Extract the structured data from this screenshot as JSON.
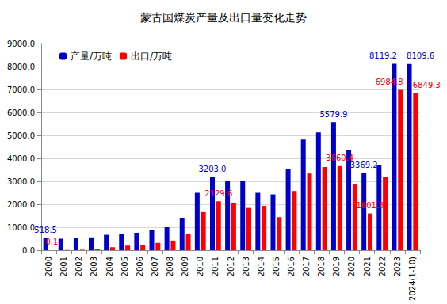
{
  "chart_data": {
    "type": "bar",
    "title": "蒙古国煤炭产量及出口量变化走势",
    "categories": [
      "2000",
      "2001",
      "2002",
      "2003",
      "2004",
      "2005",
      "2006",
      "2007",
      "2008",
      "2009",
      "2010",
      "2011",
      "2012",
      "2013",
      "2014",
      "2015",
      "2016",
      "2017",
      "2018",
      "2019",
      "2020",
      "2021",
      "2022",
      "2023",
      "2024(1-10)"
    ],
    "series": [
      {
        "name": "产量/万吨",
        "color": "#0000cc",
        "values": [
          518.5,
          500,
          540,
          560,
          670,
          710,
          760,
          880,
          1000,
          1400,
          2500,
          3203.0,
          3000,
          3000,
          2500,
          2430,
          3550,
          4820,
          5130,
          5579.9,
          4380,
          3369.2,
          3700,
          8119.2,
          8109.6
        ],
        "value_labels": [
          "518.5",
          null,
          null,
          null,
          null,
          null,
          null,
          null,
          null,
          null,
          null,
          "3203.0",
          null,
          null,
          null,
          null,
          null,
          null,
          null,
          "5579.9",
          null,
          "3369.2",
          null,
          "8119.2",
          "8109.6"
        ]
      },
      {
        "name": "出口/万吨",
        "color": "#ff0000",
        "values": [
          0.1,
          10,
          20,
          40,
          130,
          200,
          240,
          320,
          420,
          700,
          1660,
          2129.6,
          2070,
          1840,
          1930,
          1440,
          2580,
          3340,
          3620,
          3660.4,
          2860,
          1601.8,
          3180,
          6984.8,
          6849.3
        ],
        "value_labels": [
          "0.1",
          null,
          null,
          null,
          null,
          null,
          null,
          null,
          null,
          null,
          null,
          "2129.6",
          null,
          null,
          null,
          null,
          null,
          null,
          null,
          "3660.4",
          null,
          "1601.8",
          null,
          "6984.8",
          "6849.3"
        ]
      }
    ],
    "ylim": [
      0,
      9000
    ],
    "yticks": [
      {
        "value": 0,
        "label": "0.0"
      },
      {
        "value": 1000,
        "label": "1000.0"
      },
      {
        "value": 2000,
        "label": "2000.0"
      },
      {
        "value": 3000,
        "label": "3000.0"
      },
      {
        "value": 4000,
        "label": "4000.0"
      },
      {
        "value": 5000,
        "label": "5000.0"
      },
      {
        "value": 6000,
        "label": "6000.0"
      },
      {
        "value": 7000,
        "label": "7000.0"
      },
      {
        "value": 8000,
        "label": "8000.0"
      },
      {
        "value": 9000,
        "label": "9000.0"
      }
    ],
    "grid": true,
    "legend": "top-left",
    "data_labels": true
  }
}
